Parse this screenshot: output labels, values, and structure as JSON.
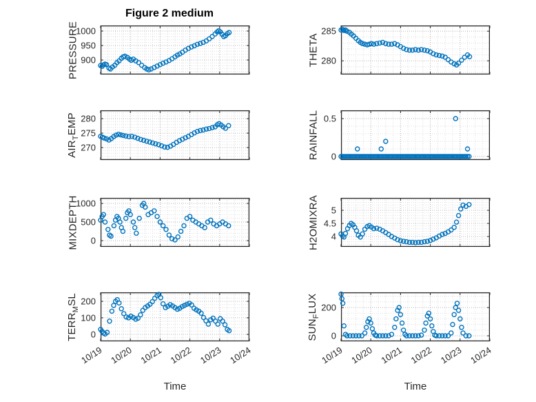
{
  "figure": {
    "title": "Figure 2 medium",
    "xlabel": "Time"
  },
  "style": {
    "marker_color": "#0072BD",
    "axis_color": "#262626",
    "grid_major_color": "#b0b0b0",
    "grid_minor_color": "#dcdcdc",
    "marker": "open-circle"
  },
  "x_axis": {
    "range": [
      0,
      5
    ],
    "ticks": [
      0,
      1,
      2,
      3,
      4,
      5
    ],
    "tick_labels": [
      "10/19",
      "10/20",
      "10/21",
      "10/22",
      "10/23",
      "10/24"
    ]
  },
  "chart_data": [
    {
      "id": "pressure",
      "type": "scatter",
      "ylabel_parts": [
        {
          "text": "PRESSURE"
        }
      ],
      "yticks": [
        900,
        950,
        1000
      ],
      "ytick_labels": [
        "900",
        "950",
        "1000"
      ],
      "ylim": [
        850,
        1019
      ],
      "x": [
        0.0,
        0.05,
        0.1,
        0.15,
        0.2,
        0.28,
        0.33,
        0.4,
        0.48,
        0.55,
        0.62,
        0.7,
        0.76,
        0.82,
        0.9,
        0.97,
        1.03,
        1.1,
        1.18,
        1.28,
        1.38,
        1.48,
        1.55,
        1.62,
        1.7,
        1.8,
        1.9,
        2.0,
        2.1,
        2.2,
        2.3,
        2.4,
        2.5,
        2.58,
        2.66,
        2.75,
        2.85,
        2.95,
        3.05,
        3.15,
        3.25,
        3.35,
        3.45,
        3.55,
        3.65,
        3.75,
        3.85,
        3.92,
        3.97,
        4.02,
        4.08,
        4.14,
        4.2,
        4.26,
        4.32
      ],
      "y": [
        881,
        878,
        883,
        886,
        884,
        872,
        869,
        876,
        882,
        891,
        897,
        906,
        911,
        913,
        909,
        903,
        899,
        903,
        897,
        891,
        882,
        874,
        869,
        866,
        869,
        874,
        879,
        884,
        889,
        893,
        898,
        904,
        911,
        917,
        921,
        927,
        934,
        940,
        945,
        949,
        954,
        957,
        961,
        966,
        973,
        981,
        990,
        997,
        1001,
        997,
        989,
        981,
        984,
        991,
        995
      ]
    },
    {
      "id": "theta",
      "type": "scatter",
      "ylabel_parts": [
        {
          "text": "THETA"
        }
      ],
      "yticks": [
        280,
        285
      ],
      "ytick_labels": [
        "280",
        "285"
      ],
      "ylim": [
        277.7,
        285.95
      ],
      "x": [
        0.0,
        0.05,
        0.1,
        0.15,
        0.2,
        0.28,
        0.35,
        0.42,
        0.5,
        0.58,
        0.65,
        0.72,
        0.8,
        0.88,
        0.95,
        1.02,
        1.1,
        1.2,
        1.3,
        1.4,
        1.5,
        1.6,
        1.7,
        1.8,
        1.9,
        2.0,
        2.1,
        2.2,
        2.3,
        2.4,
        2.5,
        2.6,
        2.7,
        2.8,
        2.9,
        3.0,
        3.1,
        3.2,
        3.3,
        3.4,
        3.5,
        3.6,
        3.7,
        3.8,
        3.88,
        3.95,
        4.05,
        4.15,
        4.25,
        4.32
      ],
      "y": [
        285.2,
        285.3,
        285.1,
        285.2,
        285.0,
        284.8,
        284.5,
        284.2,
        283.8,
        283.4,
        283.1,
        282.9,
        282.8,
        282.7,
        282.8,
        282.9,
        282.8,
        282.9,
        283.0,
        283.1,
        282.9,
        282.8,
        282.8,
        282.9,
        282.7,
        282.4,
        282.1,
        281.9,
        281.8,
        281.8,
        281.9,
        281.8,
        281.9,
        281.8,
        281.7,
        281.5,
        281.2,
        281.0,
        280.9,
        280.8,
        280.6,
        280.2,
        279.8,
        279.5,
        279.3,
        279.6,
        280.1,
        280.6,
        281.0,
        280.7
      ]
    },
    {
      "id": "air_temp",
      "type": "scatter",
      "ylabel_parts": [
        {
          "text": "AIR"
        },
        {
          "text": "T",
          "sub": true
        },
        {
          "text": "EMP"
        }
      ],
      "yticks": [
        270,
        275,
        280
      ],
      "ytick_labels": [
        "270",
        "275",
        "280"
      ],
      "ylim": [
        265.7,
        282.9
      ],
      "x": [
        0.0,
        0.06,
        0.12,
        0.2,
        0.28,
        0.36,
        0.44,
        0.52,
        0.6,
        0.68,
        0.76,
        0.85,
        0.95,
        1.05,
        1.15,
        1.25,
        1.35,
        1.45,
        1.55,
        1.65,
        1.75,
        1.85,
        1.95,
        2.05,
        2.15,
        2.25,
        2.35,
        2.45,
        2.55,
        2.65,
        2.75,
        2.85,
        2.95,
        3.05,
        3.15,
        3.25,
        3.35,
        3.45,
        3.55,
        3.65,
        3.75,
        3.85,
        3.92,
        3.98,
        4.05,
        4.12,
        4.2,
        4.3
      ],
      "y": [
        273.9,
        273.6,
        273.3,
        273.0,
        272.6,
        273.1,
        273.8,
        274.3,
        274.6,
        274.4,
        274.2,
        274.0,
        273.8,
        273.9,
        273.6,
        273.2,
        272.8,
        272.5,
        272.2,
        271.9,
        271.6,
        271.3,
        271.0,
        270.6,
        270.2,
        270.1,
        270.5,
        271.1,
        271.8,
        272.4,
        272.9,
        273.4,
        273.9,
        274.5,
        275.1,
        275.6,
        275.9,
        276.1,
        276.4,
        276.6,
        276.9,
        277.2,
        277.9,
        278.3,
        277.8,
        277.2,
        276.7,
        277.6
      ]
    },
    {
      "id": "rainfall",
      "type": "scatter",
      "ylabel_parts": [
        {
          "text": "RAINFALL"
        }
      ],
      "yticks": [
        0,
        0.5
      ],
      "ytick_labels": [
        "0",
        "0.5"
      ],
      "ylim": [
        -0.046,
        0.609
      ],
      "x": [
        0,
        0.05,
        0.1,
        0.15,
        0.2,
        0.25,
        0.3,
        0.35,
        0.4,
        0.45,
        0.5,
        0.55,
        0.6,
        0.65,
        0.7,
        0.75,
        0.8,
        0.85,
        0.9,
        0.95,
        1,
        1.05,
        1.1,
        1.15,
        1.2,
        1.25,
        1.3,
        1.35,
        1.4,
        1.45,
        1.5,
        1.55,
        1.6,
        1.65,
        1.7,
        1.75,
        1.8,
        1.85,
        1.9,
        1.95,
        2,
        2.05,
        2.1,
        2.15,
        2.2,
        2.25,
        2.3,
        2.35,
        2.4,
        2.45,
        2.5,
        2.55,
        2.6,
        2.65,
        2.7,
        2.75,
        2.8,
        2.85,
        2.9,
        2.95,
        3,
        3.05,
        3.1,
        3.15,
        3.2,
        3.25,
        3.3,
        3.35,
        3.4,
        3.45,
        3.5,
        3.55,
        3.6,
        3.65,
        3.7,
        3.75,
        3.8,
        3.85,
        3.9,
        3.95,
        4,
        4.05,
        4.1,
        4.15,
        4.2,
        4.25,
        4.3,
        0.55,
        1.35,
        1.5,
        3.85,
        4.25
      ],
      "y": [
        0,
        0,
        0,
        0,
        0,
        0,
        0,
        0,
        0,
        0,
        0,
        0,
        0,
        0,
        0,
        0,
        0,
        0,
        0,
        0,
        0,
        0,
        0,
        0,
        0,
        0,
        0,
        0,
        0,
        0,
        0,
        0,
        0,
        0,
        0,
        0,
        0,
        0,
        0,
        0,
        0,
        0,
        0,
        0,
        0,
        0,
        0,
        0,
        0,
        0,
        0,
        0,
        0,
        0,
        0,
        0,
        0,
        0,
        0,
        0,
        0,
        0,
        0,
        0,
        0,
        0,
        0,
        0,
        0,
        0,
        0,
        0,
        0,
        0,
        0,
        0,
        0,
        0,
        0,
        0,
        0,
        0,
        0,
        0,
        0,
        0,
        0,
        0.1,
        0.1,
        0.2,
        0.5,
        0.1
      ]
    },
    {
      "id": "mixdepth",
      "type": "scatter",
      "ylabel_parts": [
        {
          "text": "MIXDEPTH"
        }
      ],
      "yticks": [
        0,
        500,
        1000
      ],
      "ytick_labels": [
        "0",
        "500",
        "1000"
      ],
      "ylim": [
        -167,
        1148
      ],
      "x": [
        0.0,
        0.05,
        0.1,
        0.15,
        0.25,
        0.3,
        0.35,
        0.45,
        0.5,
        0.55,
        0.6,
        0.65,
        0.7,
        0.75,
        0.85,
        0.9,
        0.95,
        1.0,
        1.1,
        1.15,
        1.2,
        1.3,
        1.4,
        1.45,
        1.5,
        1.6,
        1.7,
        1.8,
        1.9,
        2.0,
        2.1,
        2.2,
        2.3,
        2.4,
        2.5,
        2.6,
        2.7,
        2.8,
        2.9,
        3.0,
        3.1,
        3.2,
        3.3,
        3.4,
        3.5,
        3.6,
        3.7,
        3.8,
        3.9,
        4.0,
        4.1,
        4.2,
        4.3
      ],
      "y": [
        550,
        650,
        700,
        500,
        300,
        150,
        120,
        400,
        550,
        650,
        600,
        500,
        350,
        250,
        600,
        750,
        800,
        700,
        500,
        350,
        200,
        600,
        950,
        1000,
        900,
        700,
        750,
        800,
        650,
        500,
        400,
        300,
        150,
        50,
        20,
        100,
        250,
        400,
        600,
        650,
        550,
        500,
        450,
        400,
        350,
        500,
        550,
        450,
        400,
        450,
        500,
        450,
        400
      ]
    },
    {
      "id": "h2omixra",
      "type": "scatter",
      "ylabel_parts": [
        {
          "text": "H2OMIXRA"
        }
      ],
      "yticks": [
        4,
        4.5,
        5
      ],
      "ytick_labels": [
        "4",
        "4.5",
        "5"
      ],
      "ylim": [
        3.606,
        5.474
      ],
      "x": [
        0.0,
        0.05,
        0.1,
        0.15,
        0.22,
        0.28,
        0.34,
        0.4,
        0.46,
        0.52,
        0.58,
        0.65,
        0.72,
        0.8,
        0.88,
        0.95,
        1.02,
        1.1,
        1.2,
        1.3,
        1.4,
        1.5,
        1.6,
        1.7,
        1.8,
        1.9,
        2.0,
        2.1,
        2.2,
        2.3,
        2.4,
        2.5,
        2.6,
        2.7,
        2.8,
        2.9,
        3.0,
        3.1,
        3.2,
        3.3,
        3.4,
        3.5,
        3.6,
        3.7,
        3.8,
        3.88,
        3.95,
        4.02,
        4.1,
        4.2,
        4.3
      ],
      "y": [
        4.1,
        4.02,
        3.98,
        4.12,
        4.3,
        4.42,
        4.5,
        4.45,
        4.35,
        4.22,
        4.05,
        3.98,
        4.1,
        4.28,
        4.38,
        4.42,
        4.36,
        4.3,
        4.32,
        4.28,
        4.22,
        4.15,
        4.08,
        4.0,
        3.94,
        3.88,
        3.84,
        3.82,
        3.8,
        3.78,
        3.78,
        3.77,
        3.78,
        3.78,
        3.8,
        3.82,
        3.85,
        3.9,
        3.95,
        4.02,
        4.08,
        4.12,
        4.18,
        4.25,
        4.35,
        4.55,
        4.8,
        5.05,
        5.2,
        5.15,
        5.22
      ]
    },
    {
      "id": "terr_msl",
      "type": "scatter",
      "ylabel_parts": [
        {
          "text": "TERR"
        },
        {
          "text": "M",
          "sub": true
        },
        {
          "text": "SL"
        }
      ],
      "yticks": [
        0,
        100,
        200
      ],
      "ytick_labels": [
        "0",
        "100",
        "200"
      ],
      "ylim": [
        -42,
        254
      ],
      "x": [
        0.0,
        0.05,
        0.1,
        0.15,
        0.22,
        0.3,
        0.38,
        0.44,
        0.5,
        0.56,
        0.62,
        0.7,
        0.78,
        0.86,
        0.94,
        1.02,
        1.1,
        1.18,
        1.26,
        1.34,
        1.42,
        1.5,
        1.58,
        1.66,
        1.74,
        1.82,
        1.9,
        1.96,
        2.02,
        2.1,
        2.18,
        2.26,
        2.34,
        2.42,
        2.5,
        2.58,
        2.66,
        2.74,
        2.82,
        2.9,
        2.98,
        3.06,
        3.14,
        3.22,
        3.3,
        3.38,
        3.46,
        3.54,
        3.62,
        3.7,
        3.78,
        3.86,
        3.94,
        4.02,
        4.1,
        4.18,
        4.26,
        4.32
      ],
      "y": [
        30,
        18,
        8,
        2,
        12,
        80,
        140,
        175,
        200,
        210,
        190,
        155,
        125,
        105,
        100,
        110,
        102,
        92,
        98,
        118,
        145,
        162,
        172,
        182,
        198,
        218,
        235,
        242,
        222,
        185,
        162,
        170,
        180,
        172,
        162,
        152,
        158,
        168,
        175,
        182,
        188,
        178,
        158,
        148,
        140,
        128,
        102,
        82,
        62,
        88,
        98,
        80,
        62,
        95,
        80,
        58,
        30,
        22
      ]
    },
    {
      "id": "sun_flux",
      "type": "scatter",
      "ylabel_parts": [
        {
          "text": "SUN"
        },
        {
          "text": "F",
          "sub": true
        },
        {
          "text": "LUX"
        }
      ],
      "yticks": [
        0,
        200
      ],
      "ytick_labels": [
        "0",
        "200"
      ],
      "ylim": [
        -39,
        307
      ],
      "x": [
        0.0,
        0.03,
        0.06,
        0.1,
        0.15,
        0.2,
        0.3,
        0.4,
        0.5,
        0.6,
        0.7,
        0.8,
        0.85,
        0.9,
        0.95,
        1.0,
        1.05,
        1.1,
        1.15,
        1.2,
        1.3,
        1.4,
        1.5,
        1.6,
        1.7,
        1.8,
        1.85,
        1.9,
        1.95,
        2.0,
        2.05,
        2.1,
        2.15,
        2.2,
        2.3,
        2.4,
        2.5,
        2.6,
        2.7,
        2.8,
        2.85,
        2.9,
        2.95,
        3.0,
        3.05,
        3.1,
        3.15,
        3.2,
        3.3,
        3.4,
        3.5,
        3.6,
        3.7,
        3.75,
        3.8,
        3.85,
        3.9,
        3.95,
        4.0,
        4.05,
        4.1,
        4.2,
        4.3
      ],
      "y": [
        295,
        262,
        230,
        70,
        10,
        0,
        0,
        0,
        0,
        0,
        0,
        20,
        60,
        100,
        120,
        90,
        50,
        20,
        5,
        0,
        0,
        0,
        0,
        0,
        10,
        60,
        120,
        180,
        200,
        150,
        90,
        40,
        10,
        0,
        0,
        0,
        0,
        0,
        5,
        40,
        90,
        140,
        160,
        120,
        70,
        30,
        5,
        0,
        0,
        0,
        0,
        0,
        20,
        80,
        150,
        200,
        230,
        180,
        120,
        60,
        20,
        0,
        0
      ]
    }
  ]
}
